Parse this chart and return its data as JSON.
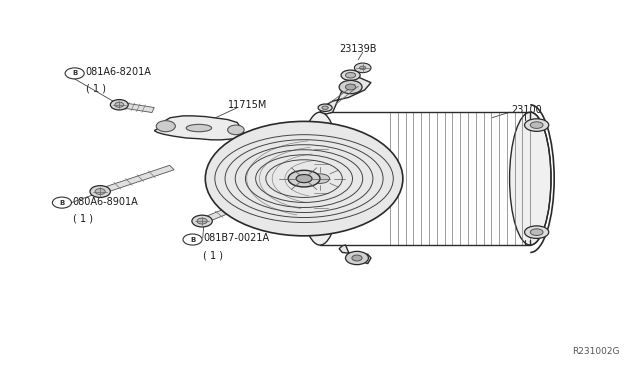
{
  "bg_color": "#ffffff",
  "line_color": "#2a2a2a",
  "text_color": "#1a1a1a",
  "ref_code": "R231002G",
  "figsize": [
    6.4,
    3.72
  ],
  "dpi": 100,
  "labels": {
    "081A6_8201A": {
      "text": "081A6-8201A",
      "sub": "( 1 )",
      "bx": 0.175,
      "by": 0.835,
      "has_b": true
    },
    "080A6_8901A": {
      "text": "080A6-8901A",
      "sub": "( 1 )",
      "bx": 0.12,
      "by": 0.44,
      "has_b": true
    },
    "081B7_0021A": {
      "text": "081B7-0021A",
      "sub": "( 1 )",
      "bx": 0.355,
      "by": 0.33,
      "has_b": true
    },
    "11715M": {
      "text": "11715M",
      "sub": "",
      "bx": 0.38,
      "by": 0.78,
      "has_b": false
    },
    "23139B": {
      "text": "23139B",
      "sub": "",
      "bx": 0.535,
      "by": 0.87,
      "has_b": false
    },
    "23100": {
      "text": "23100",
      "sub": "",
      "bx": 0.8,
      "by": 0.7,
      "has_b": false
    }
  }
}
